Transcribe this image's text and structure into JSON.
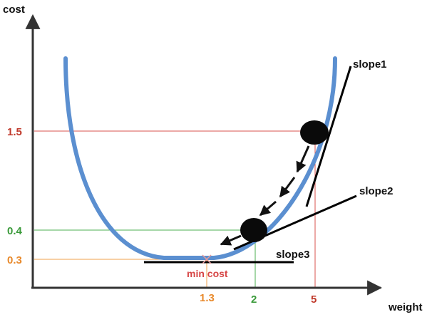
{
  "axes": {
    "y_label": "cost",
    "x_label": "weight"
  },
  "y_ticks": [
    {
      "label": "1.5",
      "color": "#c0392b"
    },
    {
      "label": "0.4",
      "color": "#3a9a3a"
    },
    {
      "label": "0.3",
      "color": "#e8892b"
    }
  ],
  "x_ticks": [
    {
      "label": "1.3",
      "color": "#e8892b"
    },
    {
      "label": "2",
      "color": "#3a9a3a"
    },
    {
      "label": "5",
      "color": "#c0392b"
    }
  ],
  "annotations": {
    "slope1": "slope1",
    "slope2": "slope2",
    "slope3": "slope3",
    "min_cost": "min cost"
  },
  "colors": {
    "curve": "#5b8fd0",
    "axis": "#333333",
    "min_cost_text": "#d64545",
    "slope_line": "#000000"
  }
}
